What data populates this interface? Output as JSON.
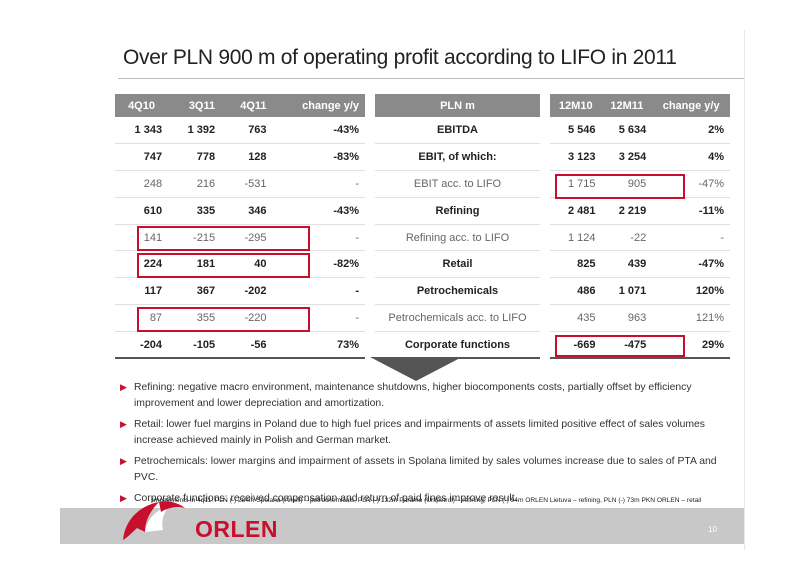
{
  "title": "Over PLN 900 m of operating profit according to LIFO in 2011",
  "left_table": {
    "headers": [
      "4Q10",
      "3Q11",
      "4Q11",
      "change y/y"
    ],
    "rows": [
      [
        "1 343",
        "1 392",
        "763",
        "-43%"
      ],
      [
        "747",
        "778",
        "128",
        "-83%"
      ],
      [
        "248",
        "216",
        "-531",
        "-"
      ],
      [
        "610",
        "335",
        "346",
        "-43%"
      ],
      [
        "141",
        "-215",
        "-295",
        "-"
      ],
      [
        "224",
        "181",
        "40",
        "-82%"
      ],
      [
        "117",
        "367",
        "-202",
        "-"
      ],
      [
        "87",
        "355",
        "-220",
        "-"
      ],
      [
        "-204",
        "-105",
        "-56",
        "73%"
      ]
    ]
  },
  "mid_table": {
    "header": "PLN m",
    "rows": [
      "EBITDA",
      "EBIT, of which:",
      "EBIT acc. to LIFO",
      "Refining",
      "Refining acc. to LIFO",
      "Retail",
      "Petrochemicals",
      "Petrochemicals acc. to LIFO",
      "Corporate functions"
    ]
  },
  "right_table": {
    "headers": [
      "12M10",
      "12M11",
      "change y/y"
    ],
    "rows": [
      [
        "5 546",
        "5 634",
        "2%"
      ],
      [
        "3 123",
        "3 254",
        "4%"
      ],
      [
        "1 715",
        "905",
        "-47%"
      ],
      [
        "2 481",
        "2 219",
        "-11%"
      ],
      [
        "1 124",
        "-22",
        "-"
      ],
      [
        "825",
        "439",
        "-47%"
      ],
      [
        "486",
        "1 071",
        "120%"
      ],
      [
        "435",
        "963",
        "121%"
      ],
      [
        "-669",
        "-475",
        "29%"
      ]
    ]
  },
  "bullets": [
    "Refining: negative macro environment, maintenance shutdowns, higher biocomponents costs, partially offset by efficiency improvement and lower depreciation and amortization.",
    "Retail: lower fuel margins in Poland due to high fuel prices and impairments of assets limited positive effect of sales volumes increase achieved mainly in Polish and German market.",
    "Petrochemicals: lower margins and impairment of assets in Spolana limited by sales volumes increase due to sales of PTA and PVC.",
    "Corporate functions: received compensation and return of paid fines improve result."
  ],
  "footnote": "Impairments in 4q11: PLN (-) 284m Spolana (Anwil) – petrochemicals, PLN (-) 132m Paramo (Unipetrol) – refining; PLN (-) 94m ORLEN Lietuva – refining, PLN (-) 73m PKN ORLEN – retail",
  "logo_text": "ORLEN",
  "page_number": "10",
  "colors": {
    "header_bg": "#8a8a8a",
    "accent": "#c8102e",
    "footer_band": "#c8c8c8"
  }
}
